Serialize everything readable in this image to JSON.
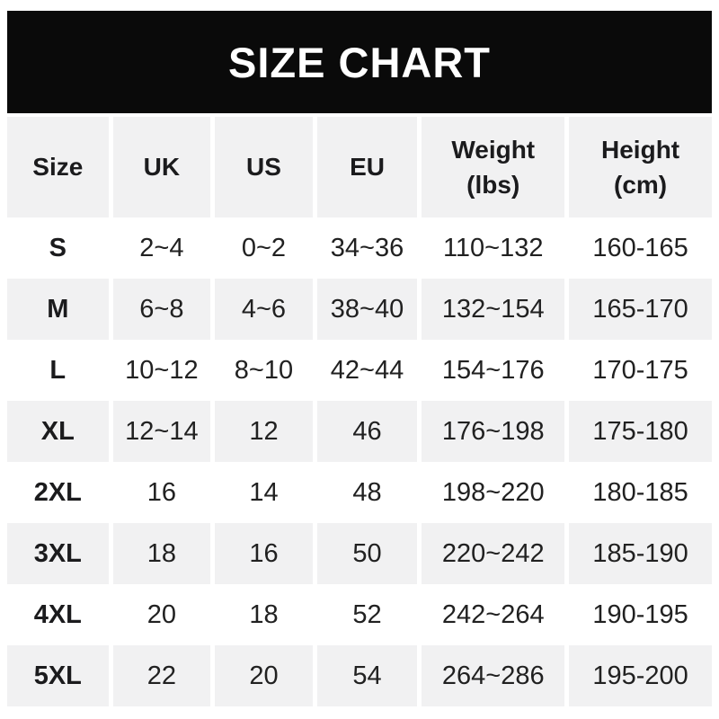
{
  "banner": {
    "title": "SIZE CHART",
    "bg_color": "#0a0a0a",
    "text_color": "#ffffff"
  },
  "header": {
    "columns": [
      {
        "line1": "Size",
        "line2": ""
      },
      {
        "line1": "UK",
        "line2": ""
      },
      {
        "line1": "US",
        "line2": ""
      },
      {
        "line1": "EU",
        "line2": ""
      },
      {
        "line1": "Weight",
        "line2": "(lbs)"
      },
      {
        "line1": "Height",
        "line2": "(cm)"
      }
    ]
  },
  "style": {
    "stripe_color": "#f1f1f2",
    "text_color": "#212121"
  },
  "chart_data": {
    "type": "table",
    "title": "SIZE CHART",
    "columns": [
      "Size",
      "UK",
      "US",
      "EU",
      "Weight (lbs)",
      "Height (cm)"
    ],
    "rows": [
      [
        "S",
        "2~4",
        "0~2",
        "34~36",
        "110~132",
        "160-165"
      ],
      [
        "M",
        "6~8",
        "4~6",
        "38~40",
        "132~154",
        "165-170"
      ],
      [
        "L",
        "10~12",
        "8~10",
        "42~44",
        "154~176",
        "170-175"
      ],
      [
        "XL",
        "12~14",
        "12",
        "46",
        "176~198",
        "175-180"
      ],
      [
        "2XL",
        "16",
        "14",
        "48",
        "198~220",
        "180-185"
      ],
      [
        "3XL",
        "18",
        "16",
        "50",
        "220~242",
        "185-190"
      ],
      [
        "4XL",
        "20",
        "18",
        "52",
        "242~264",
        "190-195"
      ],
      [
        "5XL",
        "22",
        "20",
        "54",
        "264~286",
        "195-200"
      ]
    ]
  }
}
